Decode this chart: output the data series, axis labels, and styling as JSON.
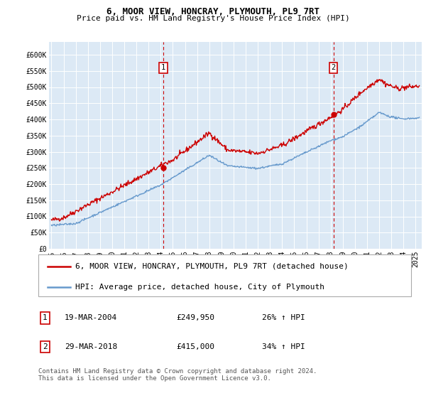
{
  "title": "6, MOOR VIEW, HONCRAY, PLYMOUTH, PL9 7RT",
  "subtitle": "Price paid vs. HM Land Registry's House Price Index (HPI)",
  "background_color": "#dce9f5",
  "red_line_label": "6, MOOR VIEW, HONCRAY, PLYMOUTH, PL9 7RT (detached house)",
  "blue_line_label": "HPI: Average price, detached house, City of Plymouth",
  "footer": "Contains HM Land Registry data © Crown copyright and database right 2024.\nThis data is licensed under the Open Government Licence v3.0.",
  "annotation1": {
    "num": "1",
    "date": "19-MAR-2004",
    "price": "£249,950",
    "hpi": "26% ↑ HPI",
    "x_year": 2004.21,
    "dot_y": 249950
  },
  "annotation2": {
    "num": "2",
    "date": "29-MAR-2018",
    "price": "£415,000",
    "hpi": "34% ↑ HPI",
    "x_year": 2018.23,
    "dot_y": 415000
  },
  "ylim": [
    0,
    640000
  ],
  "xlim": [
    1994.8,
    2025.5
  ],
  "yticks": [
    0,
    50000,
    100000,
    150000,
    200000,
    250000,
    300000,
    350000,
    400000,
    450000,
    500000,
    550000,
    600000
  ],
  "ytick_labels": [
    "£0",
    "£50K",
    "£100K",
    "£150K",
    "£200K",
    "£250K",
    "£300K",
    "£350K",
    "£400K",
    "£450K",
    "£500K",
    "£550K",
    "£600K"
  ],
  "xticks": [
    1995,
    1996,
    1997,
    1998,
    1999,
    2000,
    2001,
    2002,
    2003,
    2004,
    2005,
    2006,
    2007,
    2008,
    2009,
    2010,
    2011,
    2012,
    2013,
    2014,
    2015,
    2016,
    2017,
    2018,
    2019,
    2020,
    2021,
    2022,
    2023,
    2024,
    2025
  ],
  "red_color": "#cc0000",
  "blue_color": "#6699cc",
  "vline_color": "#cc0000",
  "title_fontsize": 9,
  "subtitle_fontsize": 8,
  "tick_fontsize": 7,
  "legend_fontsize": 8,
  "ann_fontsize": 8,
  "footer_fontsize": 6.5
}
